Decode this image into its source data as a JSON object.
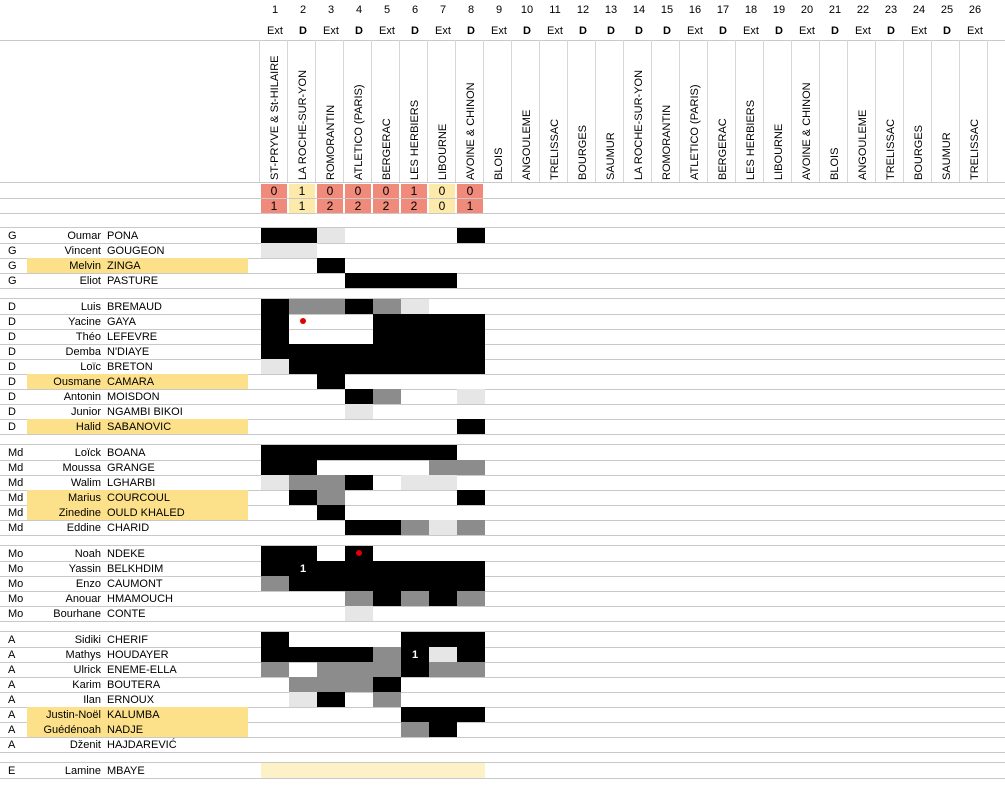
{
  "colors": {
    "win": "#f4a582",
    "draw": "#fde9a9",
    "loss": "#f08a7a",
    "highlight": "#fde18a",
    "full": "#000000",
    "partial": "#8c8c8c",
    "bench": "#e6e6e6",
    "ext_band": "#fdf1c8",
    "red_card": "#e00000"
  },
  "matches": [
    {
      "n": "1",
      "venue": "Ext",
      "opponent": "ST-PRYVE & St-HILAIRE",
      "score_for": "0",
      "score_against": "1",
      "result": "loss"
    },
    {
      "n": "2",
      "venue": "D",
      "opponent": "LA ROCHE-SUR-YON",
      "score_for": "1",
      "score_against": "1",
      "result": "draw"
    },
    {
      "n": "3",
      "venue": "Ext",
      "opponent": "ROMORANTIN",
      "score_for": "0",
      "score_against": "2",
      "result": "loss"
    },
    {
      "n": "4",
      "venue": "D",
      "opponent": "ATLETICO (PARIS)",
      "score_for": "0",
      "score_against": "2",
      "result": "loss"
    },
    {
      "n": "5",
      "venue": "Ext",
      "opponent": "BERGERAC",
      "score_for": "0",
      "score_against": "2",
      "result": "loss"
    },
    {
      "n": "6",
      "venue": "D",
      "opponent": "LES HERBIERS",
      "score_for": "1",
      "score_against": "2",
      "result": "loss"
    },
    {
      "n": "7",
      "venue": "Ext",
      "opponent": "LIBOURNE",
      "score_for": "0",
      "score_against": "0",
      "result": "draw"
    },
    {
      "n": "8",
      "venue": "D",
      "opponent": "AVOINE & CHINON",
      "score_for": "0",
      "score_against": "1",
      "result": "loss"
    },
    {
      "n": "9",
      "venue": "Ext",
      "opponent": "BLOIS"
    },
    {
      "n": "10",
      "venue": "D",
      "opponent": "ANGOULEME"
    },
    {
      "n": "11",
      "venue": "Ext",
      "opponent": "TRELISSAC"
    },
    {
      "n": "12",
      "venue": "D",
      "opponent": "BOURGES"
    },
    {
      "n": "13",
      "venue": "D",
      "opponent": "SAUMUR"
    },
    {
      "n": "14",
      "venue": "D",
      "opponent": "LA ROCHE-SUR-YON"
    },
    {
      "n": "15",
      "venue": "D",
      "opponent": "ROMORANTIN"
    },
    {
      "n": "16",
      "venue": "Ext",
      "opponent": "ATLETICO (PARIS)"
    },
    {
      "n": "17",
      "venue": "D",
      "opponent": "BERGERAC"
    },
    {
      "n": "18",
      "venue": "Ext",
      "opponent": "LES HERBIERS"
    },
    {
      "n": "19",
      "venue": "D",
      "opponent": "LIBOURNE"
    },
    {
      "n": "20",
      "venue": "Ext",
      "opponent": "AVOINE & CHINON"
    },
    {
      "n": "21",
      "venue": "D",
      "opponent": "BLOIS"
    },
    {
      "n": "22",
      "venue": "Ext",
      "opponent": "ANGOULEME"
    },
    {
      "n": "23",
      "venue": "D",
      "opponent": "TRELISSAC"
    },
    {
      "n": "24",
      "venue": "Ext",
      "opponent": "BOURGES"
    },
    {
      "n": "25",
      "venue": "D",
      "opponent": "SAUMUR"
    },
    {
      "n": "26",
      "venue": "Ext",
      "opponent": "TRELISSAC"
    }
  ],
  "groups": [
    {
      "players": [
        {
          "pos": "G",
          "first": "Oumar",
          "last": "PONA",
          "hl": false,
          "cells": "BBL....B"
        },
        {
          "pos": "G",
          "first": "Vincent",
          "last": "GOUGEON",
          "hl": false,
          "cells": "LL......"
        },
        {
          "pos": "G",
          "first": "Melvin",
          "last": "ZINGA",
          "hl": true,
          "cells": "..B....."
        },
        {
          "pos": "G",
          "first": "Eliot",
          "last": "PASTURE",
          "hl": false,
          "cells": "...BBBB."
        }
      ]
    },
    {
      "players": [
        {
          "pos": "D",
          "first": "Luis",
          "last": "BREMAUD",
          "hl": false,
          "cells": "BGGBGL.."
        },
        {
          "pos": "D",
          "first": "Yacine",
          "last": "GAYA",
          "hl": false,
          "cells": "B...BBBB",
          "red": [
            1
          ]
        },
        {
          "pos": "D",
          "first": "Théo",
          "last": "LEFEVRE",
          "hl": false,
          "cells": "B...BBBB"
        },
        {
          "pos": "D",
          "first": "Demba",
          "last": "N'DIAYE",
          "hl": false,
          "cells": "BBBBBBBB"
        },
        {
          "pos": "D",
          "first": "Loïc",
          "last": "BRETON",
          "hl": false,
          "cells": "LBBBBBBB"
        },
        {
          "pos": "D",
          "first": "Ousmane",
          "last": "CAMARA",
          "hl": true,
          "cells": "..B....."
        },
        {
          "pos": "D",
          "first": "Antonin",
          "last": "MOISDON",
          "hl": false,
          "cells": "...BG..L"
        },
        {
          "pos": "D",
          "first": "Junior",
          "last": "NGAMBI BIKOI",
          "hl": false,
          "cells": "...L...."
        },
        {
          "pos": "D",
          "first": "Halid",
          "last": "SABANOVIC",
          "hl": true,
          "cells": ".......B"
        }
      ]
    },
    {
      "players": [
        {
          "pos": "Md",
          "first": "Loïck",
          "last": "BOANA",
          "hl": false,
          "cells": "BBBBBBB."
        },
        {
          "pos": "Md",
          "first": "Moussa",
          "last": "GRANGE",
          "hl": false,
          "cells": "BB....GG"
        },
        {
          "pos": "Md",
          "first": "Walim",
          "last": "LGHARBI",
          "hl": false,
          "cells": "LGGB.LL."
        },
        {
          "pos": "Md",
          "first": "Marius",
          "last": "COURCOUL",
          "hl": true,
          "cells": ".BG....B"
        },
        {
          "pos": "Md",
          "first": "Zinedine",
          "last": "OULD KHALED",
          "hl": true,
          "cells": "..B....."
        },
        {
          "pos": "Md",
          "first": "Eddine",
          "last": "CHARID",
          "hl": false,
          "cells": "...BBGLG"
        }
      ]
    },
    {
      "players": [
        {
          "pos": "Mo",
          "first": "Noah",
          "last": "NDEKE",
          "hl": false,
          "cells": "BB.B....",
          "red": [
            3
          ]
        },
        {
          "pos": "Mo",
          "first": "Yassin",
          "last": "BELKHDIM",
          "hl": false,
          "cells": "BBBBBBBB",
          "goals": {
            "1": "1"
          }
        },
        {
          "pos": "Mo",
          "first": "Enzo",
          "last": "CAUMONT",
          "hl": false,
          "cells": "GBBBBBBB"
        },
        {
          "pos": "Mo",
          "first": "Anouar",
          "last": "HMAMOUCH",
          "hl": false,
          "cells": "...GBGBG"
        },
        {
          "pos": "Mo",
          "first": "Bourhane",
          "last": "CONTE",
          "hl": false,
          "cells": "...L...."
        }
      ]
    },
    {
      "players": [
        {
          "pos": "A",
          "first": "Sidiki",
          "last": "CHERIF",
          "hl": false,
          "cells": "B....BBB"
        },
        {
          "pos": "A",
          "first": "Mathys",
          "last": "HOUDAYER",
          "hl": false,
          "cells": "BBBBGBLB",
          "goals": {
            "5": "1"
          }
        },
        {
          "pos": "A",
          "first": "Ulrick",
          "last": "ENEME-ELLA",
          "hl": false,
          "cells": "G.GGGBGG"
        },
        {
          "pos": "A",
          "first": "Karim",
          "last": "BOUTERA",
          "hl": false,
          "cells": ".GGGB..."
        },
        {
          "pos": "A",
          "first": "Ilan",
          "last": "ERNOUX",
          "hl": false,
          "cells": ".LB.G..."
        },
        {
          "pos": "A",
          "first": "Justin-Noël",
          "last": "KALUMBA",
          "hl": true,
          "cells": ".....BBB"
        },
        {
          "pos": "A",
          "first": "Guédénoah",
          "last": "NADJE",
          "hl": true,
          "cells": ".....GB."
        },
        {
          "pos": "A",
          "first": "Dženit",
          "last": "HAJDAREVIĆ",
          "hl": false,
          "cells": "........"
        }
      ]
    },
    {
      "players": [
        {
          "pos": "E",
          "first": "Lamine",
          "last": "MBAYE",
          "hl": false,
          "cells": "YYYYYYYY"
        }
      ]
    }
  ]
}
